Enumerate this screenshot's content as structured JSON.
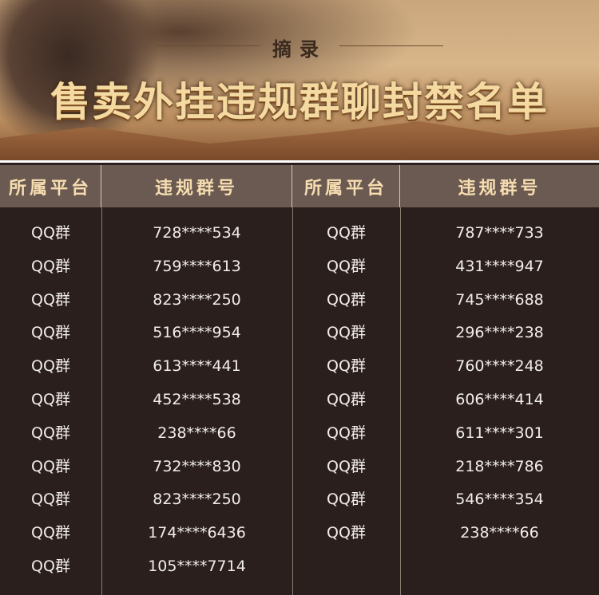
{
  "banner": {
    "subtitle": "摘录",
    "title": "售卖外挂违规群聊封禁名单"
  },
  "table": {
    "headers": [
      "所属平台",
      "违规群号",
      "所属平台",
      "违规群号"
    ],
    "left": [
      {
        "platform": "QQ群",
        "group": "728****534"
      },
      {
        "platform": "QQ群",
        "group": "759****613"
      },
      {
        "platform": "QQ群",
        "group": "823****250"
      },
      {
        "platform": "QQ群",
        "group": "516****954"
      },
      {
        "platform": "QQ群",
        "group": "613****441"
      },
      {
        "platform": "QQ群",
        "group": "452****538"
      },
      {
        "platform": "QQ群",
        "group": "238****66"
      },
      {
        "platform": "QQ群",
        "group": "732****830"
      },
      {
        "platform": "QQ群",
        "group": "823****250"
      },
      {
        "platform": "QQ群",
        "group": "174****6436"
      },
      {
        "platform": "QQ群",
        "group": "105****7714"
      }
    ],
    "right": [
      {
        "platform": "QQ群",
        "group": "787****733"
      },
      {
        "platform": "QQ群",
        "group": "431****947"
      },
      {
        "platform": "QQ群",
        "group": "745****688"
      },
      {
        "platform": "QQ群",
        "group": "296****238"
      },
      {
        "platform": "QQ群",
        "group": "760****248"
      },
      {
        "platform": "QQ群",
        "group": "606****414"
      },
      {
        "platform": "QQ群",
        "group": "611****301"
      },
      {
        "platform": "QQ群",
        "group": "218****786"
      },
      {
        "platform": "QQ群",
        "group": "546****354"
      },
      {
        "platform": "QQ群",
        "group": "238****66"
      }
    ]
  }
}
